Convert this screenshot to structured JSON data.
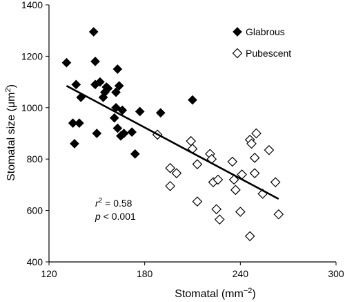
{
  "chart_data": {
    "type": "scatter",
    "xlabel_base": "Stomatal (mm",
    "xlabel_sup": "−2",
    "xlabel_end": ")",
    "ylabel_base": "Stomatal size (μm",
    "ylabel_sup": "2",
    "ylabel_end": ")",
    "xlim": [
      120,
      300
    ],
    "ylim": [
      400,
      1400
    ],
    "x_ticks": [
      "120",
      "180",
      "240",
      "300"
    ],
    "y_ticks": [
      "400",
      "600",
      "800",
      "1000",
      "1200",
      "1400"
    ],
    "legend_position": "top-right",
    "series": [
      {
        "name": "Glabrous",
        "marker": "filled-diamond",
        "color": "#000000",
        "points": [
          [
            131,
            1175
          ],
          [
            135,
            940
          ],
          [
            136,
            860
          ],
          [
            137,
            1090
          ],
          [
            139,
            940
          ],
          [
            140,
            1040
          ],
          [
            148,
            1295
          ],
          [
            149,
            1090
          ],
          [
            149,
            1180
          ],
          [
            150,
            900
          ],
          [
            152,
            1100
          ],
          [
            154,
            1040
          ],
          [
            155,
            1060
          ],
          [
            156,
            1080
          ],
          [
            157,
            1075
          ],
          [
            161,
            960
          ],
          [
            162,
            1000
          ],
          [
            162,
            1060
          ],
          [
            163,
            1150
          ],
          [
            163,
            920
          ],
          [
            164,
            1085
          ],
          [
            165,
            890
          ],
          [
            166,
            990
          ],
          [
            167,
            900
          ],
          [
            172,
            905
          ],
          [
            174,
            820
          ],
          [
            177,
            985
          ],
          [
            190,
            980
          ],
          [
            210,
            1030
          ]
        ]
      },
      {
        "name": "Pubescent",
        "marker": "open-diamond",
        "color": "#000000",
        "points": [
          [
            188,
            895
          ],
          [
            196,
            765
          ],
          [
            196,
            695
          ],
          [
            200,
            745
          ],
          [
            209,
            870
          ],
          [
            210,
            840
          ],
          [
            213,
            635
          ],
          [
            213,
            780
          ],
          [
            221,
            820
          ],
          [
            222,
            800
          ],
          [
            223,
            710
          ],
          [
            225,
            605
          ],
          [
            226,
            720
          ],
          [
            227,
            565
          ],
          [
            235,
            790
          ],
          [
            236,
            720
          ],
          [
            237,
            680
          ],
          [
            240,
            595
          ],
          [
            241,
            740
          ],
          [
            246,
            500
          ],
          [
            246,
            875
          ],
          [
            247,
            860
          ],
          [
            249,
            805
          ],
          [
            249,
            745
          ],
          [
            250,
            900
          ],
          [
            254,
            665
          ],
          [
            258,
            835
          ],
          [
            262,
            710
          ],
          [
            264,
            585
          ]
        ]
      }
    ],
    "regression_line": {
      "x": [
        131,
        264
      ],
      "y": [
        1085,
        645
      ]
    },
    "annotation": {
      "r_label": "r",
      "r_sup": "2",
      "r_value": " = 0.58",
      "p_label": "p",
      "p_value": " < 0.001"
    }
  }
}
